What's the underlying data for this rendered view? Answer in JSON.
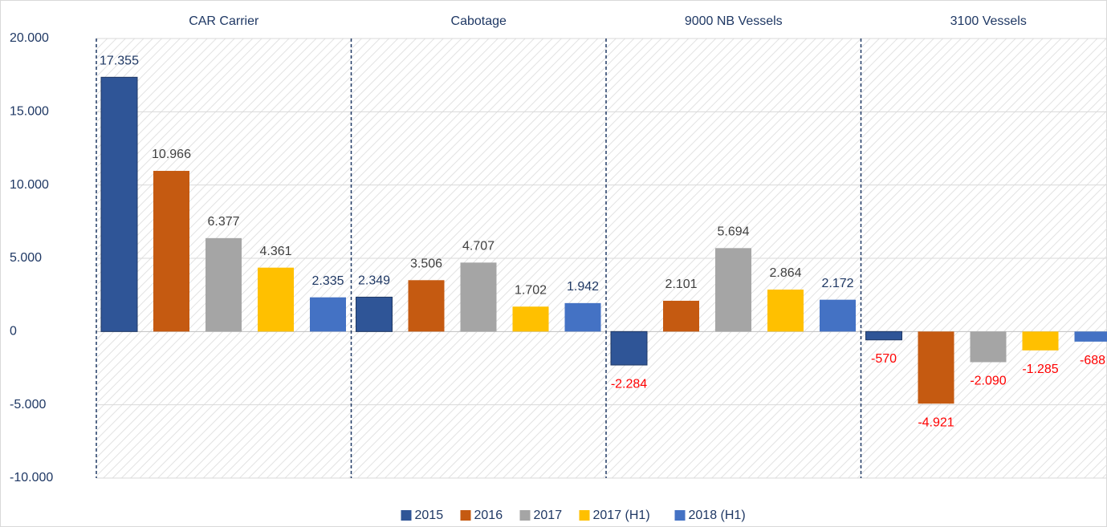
{
  "chart_data": {
    "type": "bar",
    "categories": [
      "CAR Carrier",
      "Cabotage",
      "9000 NB Vessels",
      "3100 Vessels"
    ],
    "series": [
      {
        "name": "2015",
        "color": "#2f5597",
        "values": [
          17355,
          2349,
          -2284,
          -570
        ],
        "value_labels": [
          "17.355",
          "2.349",
          "-2.284",
          "-570"
        ]
      },
      {
        "name": "2016",
        "color": "#c55a11",
        "values": [
          10966,
          3506,
          2101,
          -4921
        ],
        "value_labels": [
          "10.966",
          "3.506",
          "2.101",
          "-4.921"
        ]
      },
      {
        "name": "2017",
        "color": "#a5a5a5",
        "values": [
          6377,
          4707,
          5694,
          -2090
        ],
        "value_labels": [
          "6.377",
          "4.707",
          "5.694",
          "-2.090"
        ]
      },
      {
        "name": "2017 (H1)",
        "color": "#ffc000",
        "values": [
          4361,
          1702,
          2864,
          -1285
        ],
        "value_labels": [
          "4.361",
          "1.702",
          "2.864",
          "-1.285"
        ]
      },
      {
        "name": "2018 (H1)",
        "color": "#4472c4",
        "values": [
          2335,
          1942,
          2172,
          -688
        ],
        "value_labels": [
          "2.335",
          "1.942",
          "2.172",
          "-688"
        ]
      }
    ],
    "ylim": [
      -10000,
      20000
    ],
    "yticks": [
      {
        "value": -10000,
        "label": "-10.000"
      },
      {
        "value": -5000,
        "label": "-5.000"
      },
      0,
      {
        "value": 5000,
        "label": "5.000"
      },
      {
        "value": 10000,
        "label": "10.000"
      },
      {
        "value": 15000,
        "label": "15.000"
      },
      {
        "value": 20000,
        "label": "20.000"
      }
    ],
    "grid": true,
    "legend": "bottom"
  }
}
